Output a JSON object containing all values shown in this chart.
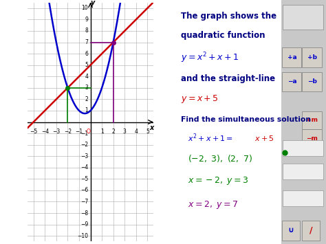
{
  "bg_color": "#ffffff",
  "graph_xlim": [
    -5.5,
    5.5
  ],
  "graph_ylim": [
    -10.5,
    10.5
  ],
  "xticks": [
    -5,
    -4,
    -3,
    -2,
    -1,
    1,
    2,
    3,
    4,
    5
  ],
  "yticks": [
    -10,
    -9,
    -8,
    -7,
    -6,
    -5,
    -4,
    -3,
    -2,
    -1,
    1,
    2,
    3,
    4,
    5,
    6,
    7,
    8,
    9,
    10
  ],
  "quadratic_color": "#0000cc",
  "line_color": "#cc0000",
  "marker_color_left": "#008000",
  "marker_color_right": "#800080",
  "text_title_color": "#000080",
  "text_blue": "#0000cc",
  "text_red": "#cc0000",
  "text_green": "#008000",
  "text_purple": "#800080",
  "text_black": "#000000",
  "grid_color": "#aaaaaa",
  "button_bg": "#d4d0c8",
  "button_text_blue": "#0000cc",
  "button_text_red": "#cc0000",
  "sidebar_bg": "#c8c8c8"
}
